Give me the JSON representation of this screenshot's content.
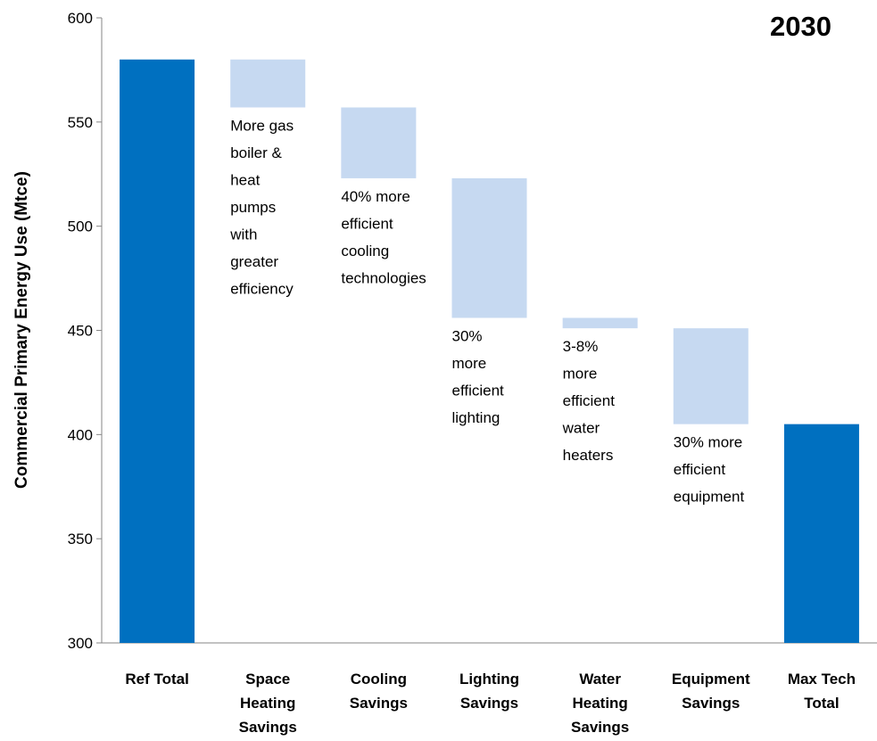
{
  "chart_data": {
    "type": "bar",
    "subtype": "waterfall",
    "title": "2030",
    "ylabel": "Commercial Primary Energy Use (Mtce)",
    "xlabel": "",
    "ylim": [
      300,
      600
    ],
    "yticks": [
      300,
      350,
      400,
      450,
      500,
      550,
      600
    ],
    "grid": false,
    "colors": {
      "total": "#0070c0",
      "saving": "#c6d9f1"
    },
    "bars": [
      {
        "category": [
          "Ref Total"
        ],
        "kind": "total",
        "top": 580,
        "bottom": 300
      },
      {
        "category": [
          "Space",
          "Heating",
          "Savings"
        ],
        "kind": "saving",
        "top": 580,
        "bottom": 557,
        "annotation": [
          "More gas",
          "boiler &",
          "heat",
          "pumps",
          "with",
          "greater",
          "efficiency"
        ]
      },
      {
        "category": [
          "Cooling",
          "Savings"
        ],
        "kind": "saving",
        "top": 557,
        "bottom": 523,
        "annotation": [
          "40% more",
          "efficient",
          "cooling",
          "technologies"
        ]
      },
      {
        "category": [
          "Lighting",
          "Savings"
        ],
        "kind": "saving",
        "top": 523,
        "bottom": 456,
        "annotation": [
          "30%",
          "more",
          "efficient",
          "lighting"
        ]
      },
      {
        "category": [
          "Water",
          "Heating",
          "Savings"
        ],
        "kind": "saving",
        "top": 456,
        "bottom": 451,
        "annotation": [
          "3-8%",
          "more",
          "efficient",
          "water",
          "heaters"
        ]
      },
      {
        "category": [
          "Equipment",
          "Savings"
        ],
        "kind": "saving",
        "top": 451,
        "bottom": 405,
        "annotation": [
          "30% more",
          "efficient",
          "equipment"
        ]
      },
      {
        "category": [
          "Max Tech",
          "Total"
        ],
        "kind": "total",
        "top": 405,
        "bottom": 300
      }
    ]
  }
}
